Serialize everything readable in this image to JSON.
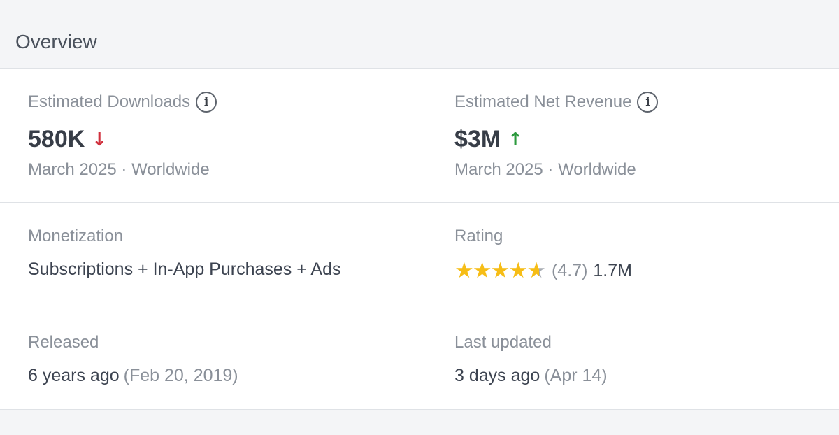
{
  "header": {
    "title": "Overview"
  },
  "downloads": {
    "label": "Estimated Downloads",
    "value": "580K",
    "trend": "down",
    "trend_color": "#d0303d",
    "period": "March 2025 · Worldwide"
  },
  "revenue": {
    "label": "Estimated Net Revenue",
    "value": "$3M",
    "trend": "up",
    "trend_color": "#2c9a3e",
    "period": "March 2025 · Worldwide"
  },
  "monetization": {
    "label": "Monetization",
    "value": "Subscriptions + In-App Purchases + Ads"
  },
  "rating": {
    "label": "Rating",
    "stars": 4.7,
    "score_text": "(4.7)",
    "count": "1.7M",
    "star_color": "#f6bd16"
  },
  "released": {
    "label": "Released",
    "relative": "6 years ago",
    "date": "(Feb 20, 2019)"
  },
  "updated": {
    "label": "Last updated",
    "relative": "3 days ago",
    "date": "(Apr 14)"
  },
  "icons": {
    "info": "i",
    "arrow_down": "↓",
    "arrow_up": "↑",
    "star": "★"
  }
}
